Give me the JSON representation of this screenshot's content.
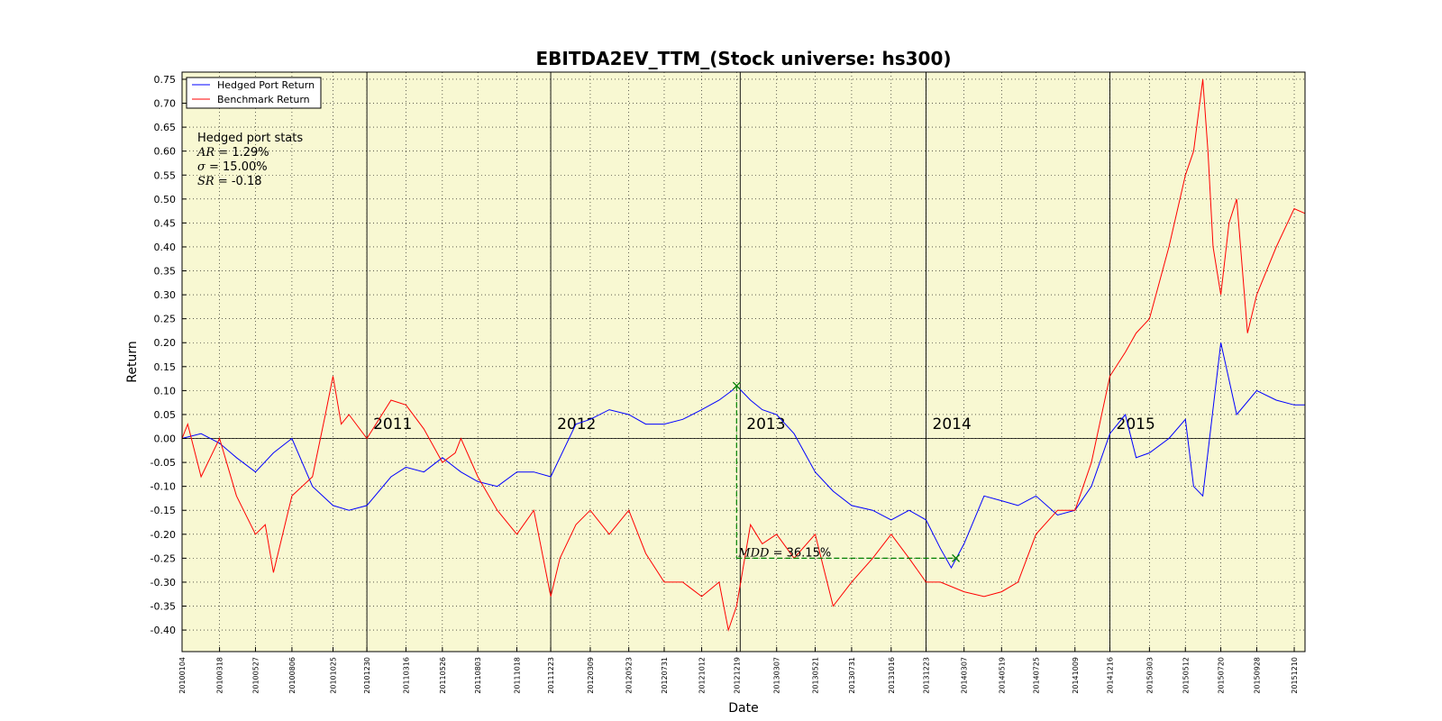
{
  "chart_data": {
    "type": "line",
    "title": "EBITDA2EV_TTM_(Stock universe: hs300)",
    "xlabel": "Date",
    "ylabel": "Return",
    "ylim": [
      -0.445,
      0.765
    ],
    "xlim": [
      "20100104",
      "20151231"
    ],
    "yticks": [
      0.75,
      0.7,
      0.65,
      0.6,
      0.55,
      0.5,
      0.45,
      0.4,
      0.35,
      0.3,
      0.25,
      0.2,
      0.15,
      0.1,
      0.05,
      0.0,
      -0.05,
      -0.1,
      -0.15,
      -0.2,
      -0.25,
      -0.3,
      -0.35,
      -0.4
    ],
    "ytick_labels": [
      "0.75",
      "0.70",
      "0.65",
      "0.60",
      "0.55",
      "0.50",
      "0.45",
      "0.40",
      "0.35",
      "0.30",
      "0.25",
      "0.20",
      "0.15",
      "0.10",
      "0.05",
      "0.00",
      "-0.05",
      "-0.10",
      "-0.15",
      "-0.20",
      "-0.25",
      "-0.30",
      "-0.35",
      "-0.40"
    ],
    "xtick_labels": [
      "20100104",
      "20100318",
      "20100527",
      "20100806",
      "20101025",
      "20101230",
      "20110316",
      "20110526",
      "20110803",
      "20111018",
      "20111223",
      "20120309",
      "20120523",
      "20120731",
      "20121012",
      "20121219",
      "20130307",
      "20130521",
      "20130731",
      "20131016",
      "20131223",
      "20140307",
      "20140519",
      "20140725",
      "20141009",
      "20141216",
      "20150303",
      "20150512",
      "20150720",
      "20150928",
      "20151210"
    ],
    "grid": true,
    "background": "#f8f8d2",
    "legend_position": "top-left",
    "series": [
      {
        "name": "Hedged Port Return",
        "color": "#0000ff",
        "x": [
          "20100104",
          "20100210",
          "20100318",
          "20100420",
          "20100527",
          "20100701",
          "20100806",
          "20100915",
          "20101025",
          "20101125",
          "20101230",
          "20110215",
          "20110316",
          "20110420",
          "20110526",
          "20110701",
          "20110803",
          "20110910",
          "20111018",
          "20111120",
          "20111223",
          "20120210",
          "20120309",
          "20120415",
          "20120523",
          "20120625",
          "20120731",
          "20120905",
          "20121012",
          "20121115",
          "20121210",
          "20121219",
          "20130115",
          "20130207",
          "20130307",
          "20130410",
          "20130521",
          "20130625",
          "20130731",
          "20130910",
          "20131016",
          "20131120",
          "20131223",
          "20140120",
          "20140210",
          "20140307",
          "20140415",
          "20140519",
          "20140620",
          "20140725",
          "20140905",
          "20141009",
          "20141110",
          "20141216",
          "20150115",
          "20150205",
          "20150303",
          "20150410",
          "20150512",
          "20150528",
          "20150615",
          "20150720",
          "20150820",
          "20150928",
          "20151105",
          "20151210",
          "20151231"
        ],
        "y": [
          0.0,
          0.01,
          -0.01,
          -0.04,
          -0.07,
          -0.03,
          0.0,
          -0.1,
          -0.14,
          -0.15,
          -0.14,
          -0.08,
          -0.06,
          -0.07,
          -0.04,
          -0.07,
          -0.09,
          -0.1,
          -0.07,
          -0.07,
          -0.08,
          0.03,
          0.04,
          0.06,
          0.05,
          0.03,
          0.03,
          0.04,
          0.06,
          0.08,
          0.1,
          0.11,
          0.08,
          0.06,
          0.05,
          0.01,
          -0.07,
          -0.11,
          -0.14,
          -0.15,
          -0.17,
          -0.15,
          -0.17,
          -0.23,
          -0.27,
          -0.22,
          -0.12,
          -0.13,
          -0.14,
          -0.12,
          -0.16,
          -0.15,
          -0.1,
          0.01,
          0.05,
          -0.04,
          -0.03,
          0.0,
          0.04,
          -0.1,
          -0.12,
          0.2,
          0.05,
          0.1,
          0.08,
          0.07,
          0.07
        ]
      },
      {
        "name": "Benchmark Return",
        "color": "#ff0000",
        "x": [
          "20100104",
          "20100115",
          "20100210",
          "20100318",
          "20100420",
          "20100527",
          "20100615",
          "20100701",
          "20100806",
          "20100915",
          "20101010",
          "20101025",
          "20101110",
          "20101125",
          "20101230",
          "20110215",
          "20110316",
          "20110420",
          "20110526",
          "20110620",
          "20110701",
          "20110803",
          "20110910",
          "20111018",
          "20111120",
          "20111223",
          "20120110",
          "20120210",
          "20120309",
          "20120415",
          "20120523",
          "20120625",
          "20120731",
          "20120905",
          "20121012",
          "20121115",
          "20121203",
          "20121219",
          "20130115",
          "20130207",
          "20130307",
          "20130410",
          "20130521",
          "20130625",
          "20130731",
          "20130910",
          "20131016",
          "20131120",
          "20131223",
          "20140120",
          "20140307",
          "20140415",
          "20140519",
          "20140620",
          "20140725",
          "20140905",
          "20141009",
          "20141110",
          "20141216",
          "20150115",
          "20150205",
          "20150303",
          "20150410",
          "20150512",
          "20150528",
          "20150615",
          "20150625",
          "20150705",
          "20150720",
          "20150805",
          "20150820",
          "20150910",
          "20150928",
          "20151105",
          "20151210",
          "20151231"
        ],
        "y": [
          0.0,
          0.03,
          -0.08,
          0.0,
          -0.12,
          -0.2,
          -0.18,
          -0.28,
          -0.12,
          -0.08,
          0.05,
          0.13,
          0.03,
          0.05,
          0.0,
          0.08,
          0.07,
          0.02,
          -0.05,
          -0.03,
          0.0,
          -0.08,
          -0.15,
          -0.2,
          -0.15,
          -0.33,
          -0.25,
          -0.18,
          -0.15,
          -0.2,
          -0.15,
          -0.24,
          -0.3,
          -0.3,
          -0.33,
          -0.3,
          -0.4,
          -0.35,
          -0.18,
          -0.22,
          -0.2,
          -0.25,
          -0.2,
          -0.35,
          -0.3,
          -0.25,
          -0.2,
          -0.25,
          -0.3,
          -0.3,
          -0.32,
          -0.33,
          -0.32,
          -0.3,
          -0.2,
          -0.15,
          -0.15,
          -0.05,
          0.13,
          0.18,
          0.22,
          0.25,
          0.4,
          0.55,
          0.6,
          0.75,
          0.6,
          0.4,
          0.3,
          0.45,
          0.5,
          0.22,
          0.3,
          0.4,
          0.48,
          0.47
        ]
      }
    ],
    "year_dividers": [
      {
        "date": "20101230",
        "label": "2011"
      },
      {
        "date": "20111223",
        "label": "2012"
      },
      {
        "date": "20121226",
        "label": "2013"
      },
      {
        "date": "20131223",
        "label": "2014"
      },
      {
        "date": "20141216",
        "label": "2015"
      }
    ],
    "stats_box": {
      "heading": "Hedged port stats",
      "lines": [
        {
          "symbol": "AR = ",
          "value": "1.29%"
        },
        {
          "symbol": "σ = ",
          "value": "15.00%"
        },
        {
          "symbol": "SR = ",
          "value": "-0.18"
        }
      ]
    },
    "mdd": {
      "peak_date": "20121219",
      "peak_value": 0.11,
      "trough_date": "20140219",
      "trough_value": -0.25,
      "label_symbol": "MDD = ",
      "label_value": "36.15%",
      "color": "#008000"
    }
  }
}
